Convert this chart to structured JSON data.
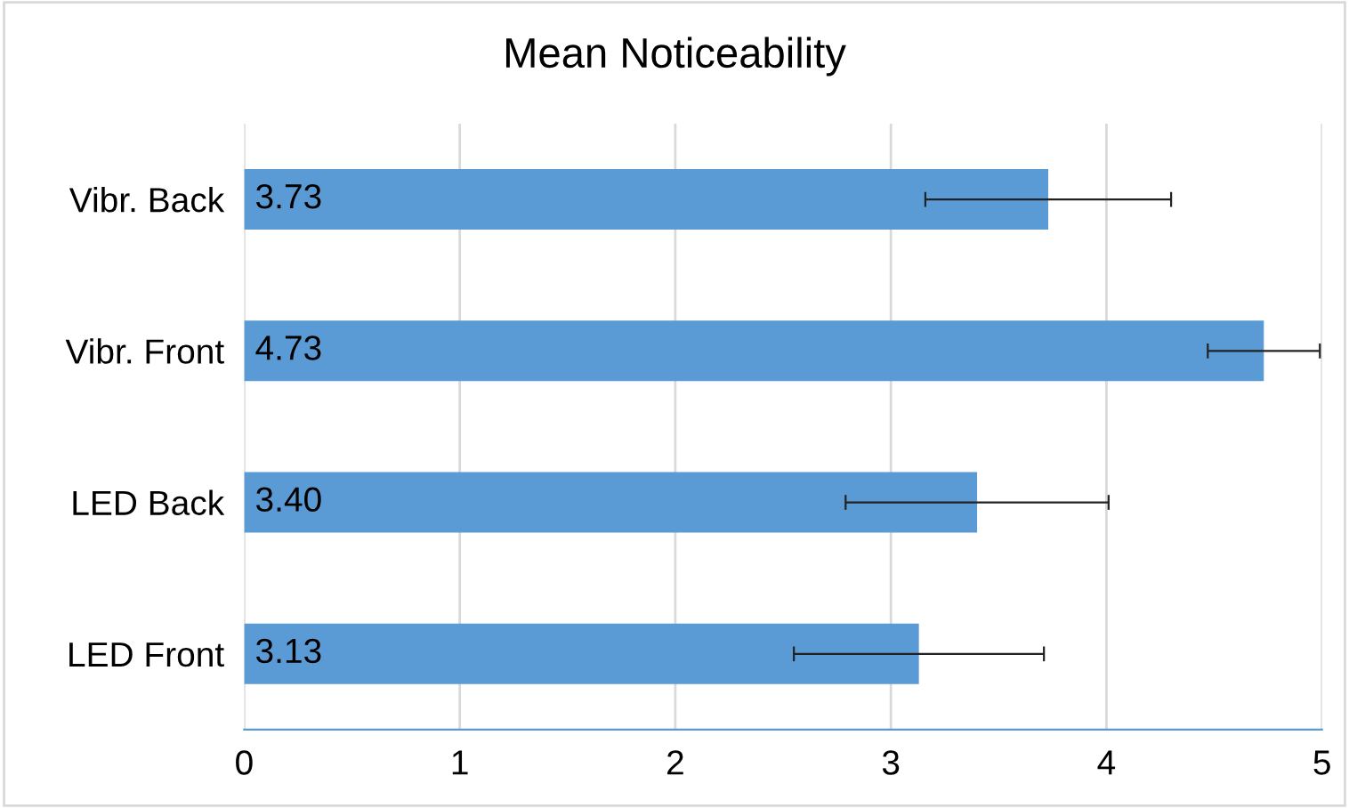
{
  "chart_data": {
    "type": "bar",
    "orientation": "horizontal",
    "title": "Mean Noticeability",
    "categories": [
      "Vibr. Back",
      "Vibr. Front",
      "LED Back",
      "LED Front"
    ],
    "values": [
      3.73,
      4.73,
      3.4,
      3.13
    ],
    "value_labels": [
      "3.73",
      "4.73",
      "3.40",
      "3.13"
    ],
    "errors": [
      0.57,
      0.26,
      0.61,
      0.58
    ],
    "color": "#5b9bd5",
    "xlim": [
      0,
      5
    ],
    "xticks": [
      0,
      1,
      2,
      3,
      4,
      5
    ],
    "grid": "x",
    "legend": false
  }
}
